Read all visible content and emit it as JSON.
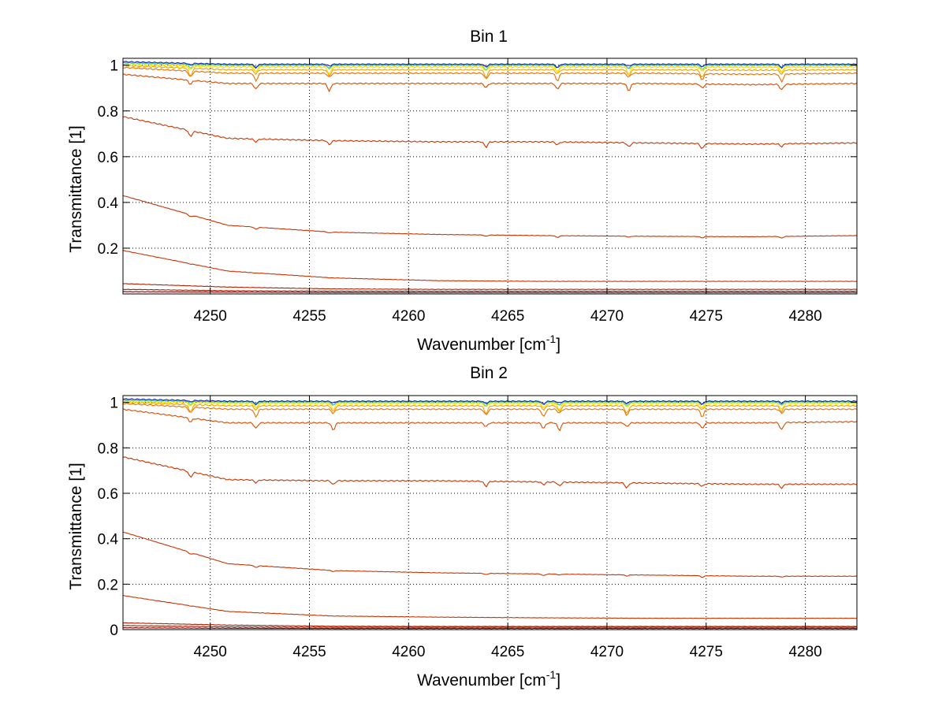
{
  "figure": {
    "background": "#ffffff",
    "grid": true,
    "grid_style": "dotted",
    "grid_color": "#000000"
  },
  "chart_data": [
    {
      "type": "line",
      "title": "Bin 1",
      "xlabel": "Wavenumber [cm",
      "xlabel_sup": "-1",
      "xlabel_suffix": "]",
      "ylabel": "Transmittance [1]",
      "xlim": [
        4245.6,
        4282.6
      ],
      "ylim": [
        0,
        1.03
      ],
      "xticks": [
        4250,
        4255,
        4260,
        4265,
        4270,
        4275,
        4280
      ],
      "xticklabels": [
        "4250",
        "4255",
        "4260",
        "4265",
        "4270",
        "4275",
        "4280"
      ],
      "yticks": [
        0.2,
        0.4,
        0.6,
        0.8,
        1
      ],
      "yticklabels": [
        "0.2",
        "0.4",
        "0.6",
        "0.8",
        "1"
      ],
      "absorption_lines_x": [
        4249.0,
        4252.3,
        4256.0,
        4263.9,
        4267.5,
        4271.1,
        4274.8,
        4278.8
      ],
      "series": [
        {
          "color": "#8b0000",
          "values": [
            0.01,
            0.008,
            0.006,
            0.006,
            0.006,
            0.006,
            0.006,
            0.006
          ]
        },
        {
          "color": "#9a1a00",
          "values": [
            0.02,
            0.014,
            0.012,
            0.012,
            0.012,
            0.012,
            0.012,
            0.012
          ]
        },
        {
          "color": "#b22000",
          "values": [
            0.045,
            0.03,
            0.022,
            0.02,
            0.02,
            0.02,
            0.02,
            0.02
          ]
        },
        {
          "color": "#cc3300",
          "values": [
            0.19,
            0.1,
            0.07,
            0.058,
            0.055,
            0.055,
            0.055,
            0.055
          ]
        },
        {
          "color": "#cc3300",
          "values": [
            0.43,
            0.3,
            0.27,
            0.26,
            0.255,
            0.252,
            0.25,
            0.255
          ]
        },
        {
          "color": "#cc3300",
          "values": [
            0.775,
            0.68,
            0.67,
            0.665,
            0.665,
            0.66,
            0.655,
            0.66
          ]
        },
        {
          "color": "#d84a00",
          "values": [
            0.96,
            0.92,
            0.92,
            0.92,
            0.92,
            0.92,
            0.915,
            0.92
          ]
        },
        {
          "color": "#e87000",
          "values": [
            0.99,
            0.965,
            0.965,
            0.965,
            0.965,
            0.965,
            0.96,
            0.965
          ]
        },
        {
          "color": "#f0a000",
          "values": [
            0.998,
            0.98,
            0.98,
            0.98,
            0.98,
            0.98,
            0.978,
            0.98
          ]
        },
        {
          "color": "#ffd700",
          "values": [
            1.0,
            0.992,
            0.992,
            0.992,
            0.992,
            0.992,
            0.99,
            0.992
          ]
        },
        {
          "color": "#f5e600",
          "values": [
            1.005,
            0.997,
            0.997,
            0.997,
            0.997,
            0.997,
            0.996,
            0.997
          ]
        },
        {
          "color": "#66dd66",
          "values": [
            1.01,
            1.0,
            1.0,
            1.0,
            1.0,
            1.0,
            1.0,
            1.0
          ]
        },
        {
          "color": "#33bbff",
          "values": [
            1.012,
            1.003,
            1.003,
            1.003,
            1.003,
            1.003,
            1.003,
            1.003
          ]
        },
        {
          "color": "#2222aa",
          "values": [
            1.015,
            1.004,
            1.004,
            1.004,
            1.004,
            1.004,
            1.004,
            1.004
          ]
        }
      ]
    },
    {
      "type": "line",
      "title": "Bin 2",
      "xlabel": "Wavenumber [cm",
      "xlabel_sup": "-1",
      "xlabel_suffix": "]",
      "ylabel": "Transmittance [1]",
      "xlim": [
        4245.6,
        4282.6
      ],
      "ylim": [
        0,
        1.03
      ],
      "xticks": [
        4250,
        4255,
        4260,
        4265,
        4270,
        4275,
        4280
      ],
      "xticklabels": [
        "4250",
        "4255",
        "4260",
        "4265",
        "4270",
        "4275",
        "4280"
      ],
      "yticks": [
        0,
        0.2,
        0.4,
        0.6,
        0.8,
        1
      ],
      "yticklabels": [
        "0",
        "0.2",
        "0.4",
        "0.6",
        "0.8",
        "1"
      ],
      "absorption_lines_x": [
        4249.0,
        4252.3,
        4256.2,
        4263.9,
        4266.8,
        4267.6,
        4271.0,
        4274.8,
        4278.8
      ],
      "series": [
        {
          "color": "#8b0000",
          "values": [
            0.008,
            0.006,
            0.005,
            0.005,
            0.005,
            0.005,
            0.005,
            0.005
          ]
        },
        {
          "color": "#9a1a00",
          "values": [
            0.018,
            0.012,
            0.01,
            0.01,
            0.01,
            0.01,
            0.01,
            0.01
          ]
        },
        {
          "color": "#b22000",
          "values": [
            0.03,
            0.02,
            0.015,
            0.014,
            0.014,
            0.014,
            0.014,
            0.014
          ]
        },
        {
          "color": "#cc3300",
          "values": [
            0.15,
            0.08,
            0.06,
            0.055,
            0.052,
            0.05,
            0.05,
            0.05
          ]
        },
        {
          "color": "#cc3300",
          "values": [
            0.43,
            0.29,
            0.26,
            0.25,
            0.245,
            0.24,
            0.235,
            0.235
          ]
        },
        {
          "color": "#cc3300",
          "values": [
            0.76,
            0.66,
            0.655,
            0.655,
            0.65,
            0.645,
            0.64,
            0.64
          ]
        },
        {
          "color": "#d84a00",
          "values": [
            0.97,
            0.91,
            0.91,
            0.91,
            0.91,
            0.91,
            0.91,
            0.915
          ]
        },
        {
          "color": "#e87000",
          "values": [
            0.995,
            0.97,
            0.97,
            0.97,
            0.97,
            0.97,
            0.97,
            0.97
          ]
        },
        {
          "color": "#f0a000",
          "values": [
            1.0,
            0.985,
            0.985,
            0.985,
            0.985,
            0.985,
            0.985,
            0.985
          ]
        },
        {
          "color": "#ffd700",
          "values": [
            1.003,
            0.995,
            0.995,
            0.995,
            0.995,
            0.995,
            0.995,
            0.995
          ]
        },
        {
          "color": "#f5e600",
          "values": [
            1.006,
            0.999,
            0.999,
            0.999,
            0.999,
            0.999,
            0.999,
            0.999
          ]
        },
        {
          "color": "#66dd66",
          "values": [
            1.01,
            1.002,
            1.002,
            1.002,
            1.002,
            1.002,
            1.002,
            1.002
          ]
        },
        {
          "color": "#33bbff",
          "values": [
            1.012,
            1.004,
            1.004,
            1.004,
            1.004,
            1.004,
            1.004,
            1.004
          ]
        },
        {
          "color": "#2222aa",
          "values": [
            1.015,
            1.005,
            1.005,
            1.005,
            1.005,
            1.005,
            1.005,
            1.005
          ]
        }
      ]
    }
  ]
}
